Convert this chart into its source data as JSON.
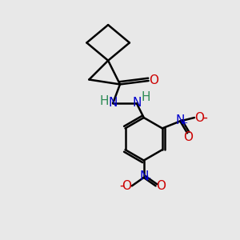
{
  "background_color": "#e8e8e8",
  "bond_color": "#000000",
  "bond_width": 1.8,
  "atom_colors": {
    "C": "#000000",
    "N": "#0000cc",
    "O": "#cc0000",
    "H": "#2e8b57"
  },
  "font_size_atom": 11,
  "font_size_charge": 8,
  "fig_size": [
    3.0,
    3.0
  ],
  "dpi": 100
}
